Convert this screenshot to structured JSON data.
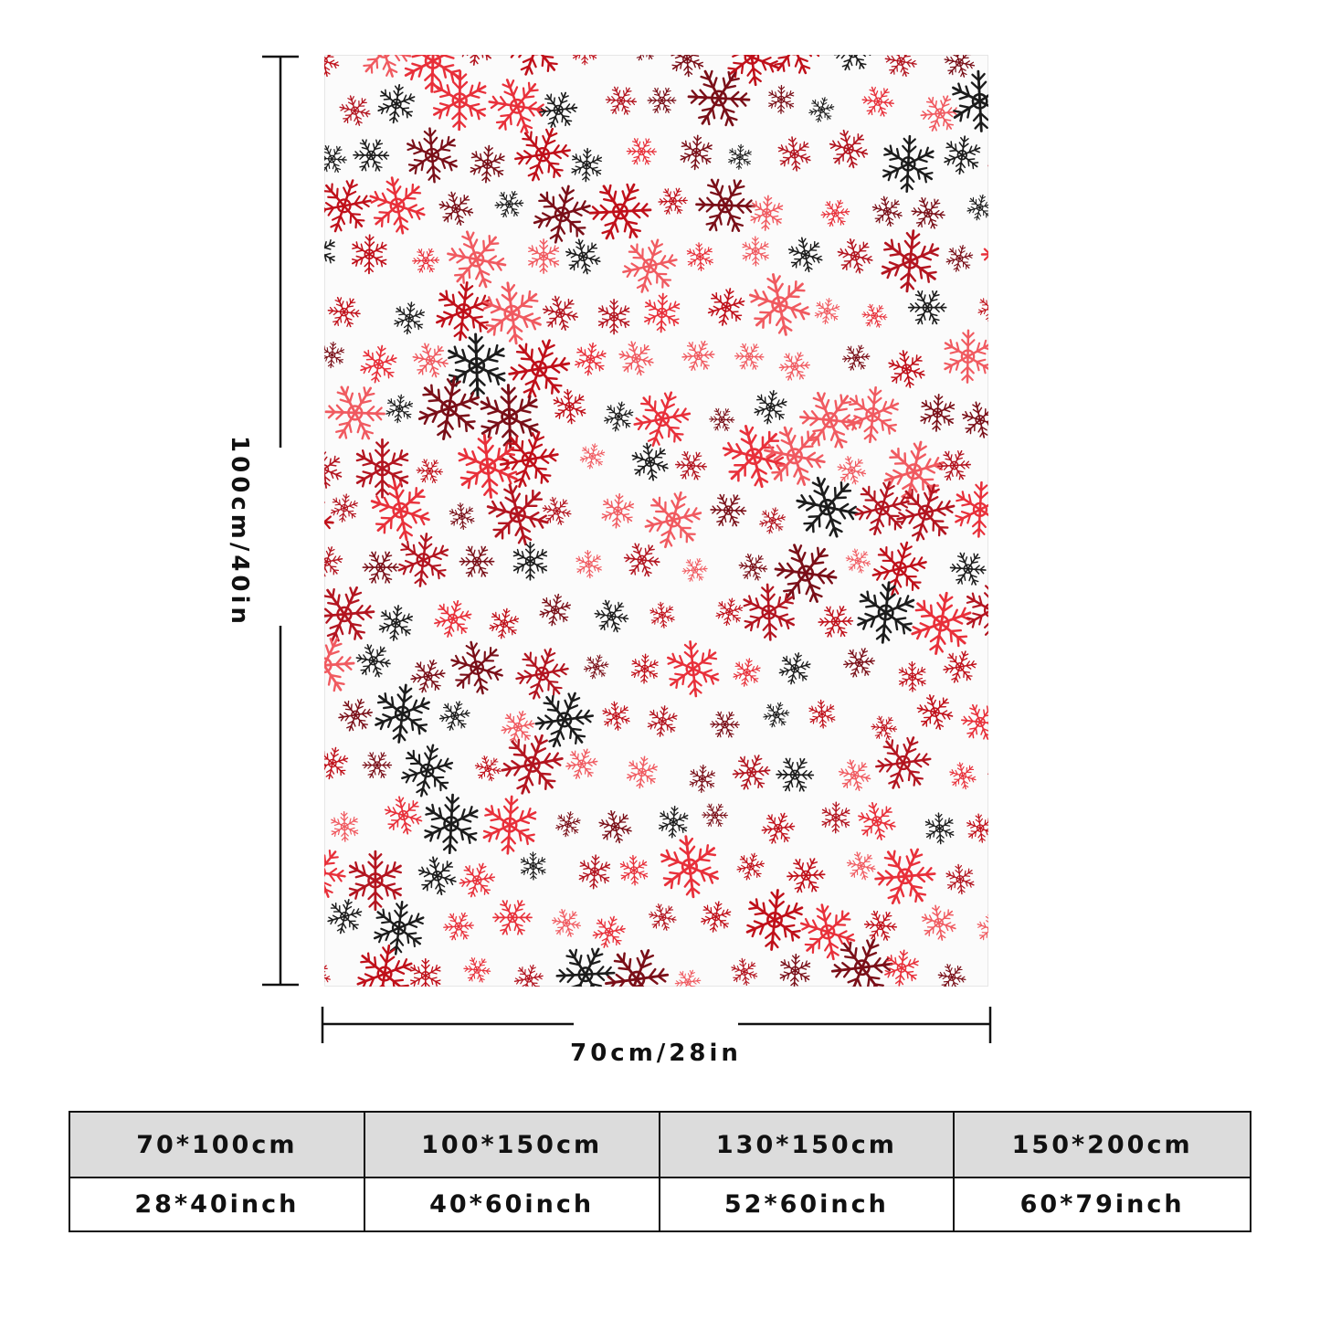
{
  "product": {
    "pattern_colors": [
      "#c0101a",
      "#e8303a",
      "#7a0f18",
      "#1c1c1c",
      "#f05a60",
      "#b31520"
    ],
    "background_color": "#fbfbfb"
  },
  "dimensions": {
    "height_label": "100cm/40in",
    "width_label": "70cm/28in"
  },
  "size_table": {
    "cm_row": [
      "70*100cm",
      "100*150cm",
      "130*150cm",
      "150*200cm"
    ],
    "inch_row": [
      "28*40inch",
      "40*60inch",
      "52*60inch",
      "60*79inch"
    ]
  }
}
